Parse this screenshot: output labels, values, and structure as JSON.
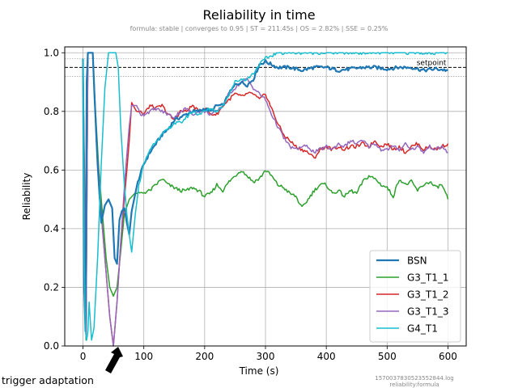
{
  "chart_data": {
    "type": "line",
    "title": "Reliability in time",
    "subtitle": "formula: stable | converges to 0.95 | ST = 211.45s | OS = 2.82% | SSE = 0.25%",
    "xlabel": "Time (s)",
    "ylabel": "Reliability",
    "xlim": [
      -30,
      630
    ],
    "ylim": [
      0.0,
      1.02
    ],
    "xticks": [
      0,
      100,
      200,
      300,
      400,
      500,
      600
    ],
    "yticks": [
      0.0,
      0.2,
      0.4,
      0.6,
      0.8,
      1.0
    ],
    "grid": true,
    "legend_position": "lower-right",
    "setpoint": {
      "label": "setpoint",
      "value": 0.95,
      "band_upper": 0.98,
      "band_lower": 0.92
    },
    "footnote": [
      "1570037830523552844.log",
      "reliability:formula"
    ],
    "annotation": {
      "text": "trigger adaptation",
      "x": 55,
      "y": 0.0
    },
    "series": [
      {
        "name": "BSN",
        "color": "#1f77b4",
        "lw": 2.2,
        "points": [
          [
            0,
            0.98
          ],
          [
            2,
            0.2
          ],
          [
            4,
            0.05
          ],
          [
            6,
            0.9
          ],
          [
            8,
            1.0
          ],
          [
            12,
            1.0
          ],
          [
            16,
            1.0
          ],
          [
            19,
            0.85
          ],
          [
            24,
            0.62
          ],
          [
            30,
            0.42
          ],
          [
            36,
            0.48
          ],
          [
            42,
            0.5
          ],
          [
            48,
            0.47
          ],
          [
            52,
            0.3
          ],
          [
            56,
            0.28
          ],
          [
            60,
            0.43
          ],
          [
            64,
            0.46
          ],
          [
            68,
            0.47
          ],
          [
            72,
            0.42
          ],
          [
            76,
            0.38
          ],
          [
            80,
            0.46
          ],
          [
            90,
            0.56
          ],
          [
            100,
            0.62
          ],
          [
            110,
            0.66
          ],
          [
            120,
            0.69
          ],
          [
            130,
            0.72
          ],
          [
            140,
            0.74
          ],
          [
            150,
            0.77
          ],
          [
            160,
            0.78
          ],
          [
            170,
            0.79
          ],
          [
            180,
            0.8
          ],
          [
            190,
            0.8
          ],
          [
            200,
            0.81
          ],
          [
            210,
            0.8
          ],
          [
            220,
            0.82
          ],
          [
            230,
            0.82
          ],
          [
            240,
            0.86
          ],
          [
            250,
            0.89
          ],
          [
            260,
            0.9
          ],
          [
            270,
            0.89
          ],
          [
            280,
            0.91
          ],
          [
            290,
            0.96
          ],
          [
            300,
            0.97
          ],
          [
            310,
            0.96
          ],
          [
            320,
            0.95
          ],
          [
            340,
            0.95
          ],
          [
            360,
            0.94
          ],
          [
            380,
            0.95
          ],
          [
            400,
            0.95
          ],
          [
            420,
            0.94
          ],
          [
            440,
            0.945
          ],
          [
            460,
            0.95
          ],
          [
            480,
            0.95
          ],
          [
            500,
            0.945
          ],
          [
            520,
            0.95
          ],
          [
            540,
            0.95
          ],
          [
            560,
            0.94
          ],
          [
            580,
            0.945
          ],
          [
            600,
            0.94
          ]
        ]
      },
      {
        "name": "G3_T1_1",
        "color": "#2ca02c",
        "lw": 1.5,
        "points": [
          [
            0,
            0.98
          ],
          [
            3,
            0.5
          ],
          [
            5,
            0.02
          ],
          [
            8,
            1.0
          ],
          [
            12,
            1.0
          ],
          [
            16,
            1.0
          ],
          [
            20,
            0.82
          ],
          [
            26,
            0.6
          ],
          [
            32,
            0.45
          ],
          [
            38,
            0.3
          ],
          [
            44,
            0.2
          ],
          [
            50,
            0.17
          ],
          [
            56,
            0.2
          ],
          [
            62,
            0.32
          ],
          [
            68,
            0.45
          ],
          [
            76,
            0.5
          ],
          [
            85,
            0.52
          ],
          [
            95,
            0.52
          ],
          [
            110,
            0.53
          ],
          [
            120,
            0.55
          ],
          [
            130,
            0.57
          ],
          [
            140,
            0.55
          ],
          [
            150,
            0.54
          ],
          [
            160,
            0.53
          ],
          [
            170,
            0.53
          ],
          [
            180,
            0.54
          ],
          [
            190,
            0.53
          ],
          [
            200,
            0.51
          ],
          [
            210,
            0.52
          ],
          [
            220,
            0.55
          ],
          [
            230,
            0.53
          ],
          [
            240,
            0.56
          ],
          [
            250,
            0.58
          ],
          [
            260,
            0.6
          ],
          [
            270,
            0.58
          ],
          [
            280,
            0.56
          ],
          [
            290,
            0.57
          ],
          [
            300,
            0.6
          ],
          [
            310,
            0.58
          ],
          [
            320,
            0.55
          ],
          [
            330,
            0.54
          ],
          [
            340,
            0.52
          ],
          [
            350,
            0.51
          ],
          [
            360,
            0.47
          ],
          [
            370,
            0.5
          ],
          [
            380,
            0.53
          ],
          [
            390,
            0.55
          ],
          [
            400,
            0.55
          ],
          [
            410,
            0.52
          ],
          [
            420,
            0.53
          ],
          [
            430,
            0.51
          ],
          [
            440,
            0.53
          ],
          [
            450,
            0.52
          ],
          [
            460,
            0.56
          ],
          [
            470,
            0.58
          ],
          [
            480,
            0.57
          ],
          [
            490,
            0.55
          ],
          [
            500,
            0.54
          ],
          [
            510,
            0.51
          ],
          [
            520,
            0.57
          ],
          [
            530,
            0.55
          ],
          [
            540,
            0.56
          ],
          [
            550,
            0.53
          ],
          [
            560,
            0.55
          ],
          [
            570,
            0.56
          ],
          [
            580,
            0.54
          ],
          [
            590,
            0.55
          ],
          [
            600,
            0.5
          ]
        ]
      },
      {
        "name": "G3_T1_2",
        "color": "#d62728",
        "lw": 1.5,
        "points": [
          [
            0,
            0.98
          ],
          [
            3,
            0.4
          ],
          [
            5,
            0.03
          ],
          [
            8,
            1.0
          ],
          [
            12,
            1.0
          ],
          [
            16,
            1.0
          ],
          [
            22,
            0.7
          ],
          [
            30,
            0.45
          ],
          [
            38,
            0.25
          ],
          [
            44,
            0.1
          ],
          [
            50,
            0.0
          ],
          [
            56,
            0.15
          ],
          [
            62,
            0.35
          ],
          [
            70,
            0.55
          ],
          [
            76,
            0.7
          ],
          [
            80,
            0.83
          ],
          [
            88,
            0.8
          ],
          [
            95,
            0.8
          ],
          [
            100,
            0.79
          ],
          [
            110,
            0.82
          ],
          [
            120,
            0.81
          ],
          [
            130,
            0.82
          ],
          [
            140,
            0.79
          ],
          [
            150,
            0.77
          ],
          [
            160,
            0.8
          ],
          [
            170,
            0.8
          ],
          [
            180,
            0.82
          ],
          [
            190,
            0.8
          ],
          [
            200,
            0.81
          ],
          [
            210,
            0.79
          ],
          [
            220,
            0.79
          ],
          [
            230,
            0.82
          ],
          [
            240,
            0.84
          ],
          [
            250,
            0.86
          ],
          [
            260,
            0.85
          ],
          [
            270,
            0.86
          ],
          [
            280,
            0.86
          ],
          [
            290,
            0.84
          ],
          [
            300,
            0.86
          ],
          [
            310,
            0.81
          ],
          [
            320,
            0.76
          ],
          [
            330,
            0.72
          ],
          [
            340,
            0.7
          ],
          [
            350,
            0.68
          ],
          [
            360,
            0.67
          ],
          [
            370,
            0.66
          ],
          [
            380,
            0.64
          ],
          [
            390,
            0.67
          ],
          [
            400,
            0.68
          ],
          [
            410,
            0.67
          ],
          [
            420,
            0.68
          ],
          [
            430,
            0.67
          ],
          [
            440,
            0.68
          ],
          [
            450,
            0.68
          ],
          [
            460,
            0.69
          ],
          [
            470,
            0.68
          ],
          [
            480,
            0.7
          ],
          [
            490,
            0.68
          ],
          [
            500,
            0.69
          ],
          [
            510,
            0.67
          ],
          [
            520,
            0.68
          ],
          [
            530,
            0.66
          ],
          [
            540,
            0.68
          ],
          [
            550,
            0.69
          ],
          [
            560,
            0.67
          ],
          [
            570,
            0.68
          ],
          [
            580,
            0.67
          ],
          [
            590,
            0.68
          ],
          [
            600,
            0.69
          ]
        ]
      },
      {
        "name": "G3_T1_3",
        "color": "#9467bd",
        "lw": 1.5,
        "points": [
          [
            0,
            0.98
          ],
          [
            3,
            0.4
          ],
          [
            5,
            0.03
          ],
          [
            8,
            1.0
          ],
          [
            12,
            1.0
          ],
          [
            16,
            1.0
          ],
          [
            22,
            0.7
          ],
          [
            30,
            0.45
          ],
          [
            38,
            0.25
          ],
          [
            44,
            0.1
          ],
          [
            50,
            0.0
          ],
          [
            56,
            0.15
          ],
          [
            62,
            0.35
          ],
          [
            70,
            0.6
          ],
          [
            76,
            0.75
          ],
          [
            80,
            0.82
          ],
          [
            88,
            0.82
          ],
          [
            95,
            0.79
          ],
          [
            100,
            0.79
          ],
          [
            110,
            0.8
          ],
          [
            120,
            0.81
          ],
          [
            130,
            0.8
          ],
          [
            140,
            0.79
          ],
          [
            150,
            0.78
          ],
          [
            160,
            0.8
          ],
          [
            170,
            0.81
          ],
          [
            180,
            0.79
          ],
          [
            190,
            0.8
          ],
          [
            200,
            0.8
          ],
          [
            210,
            0.79
          ],
          [
            220,
            0.8
          ],
          [
            230,
            0.82
          ],
          [
            240,
            0.86
          ],
          [
            250,
            0.88
          ],
          [
            260,
            0.9
          ],
          [
            270,
            0.91
          ],
          [
            280,
            0.88
          ],
          [
            290,
            0.86
          ],
          [
            300,
            0.84
          ],
          [
            310,
            0.79
          ],
          [
            320,
            0.75
          ],
          [
            330,
            0.71
          ],
          [
            340,
            0.68
          ],
          [
            350,
            0.67
          ],
          [
            360,
            0.68
          ],
          [
            370,
            0.68
          ],
          [
            380,
            0.66
          ],
          [
            390,
            0.67
          ],
          [
            400,
            0.68
          ],
          [
            410,
            0.67
          ],
          [
            420,
            0.69
          ],
          [
            430,
            0.68
          ],
          [
            440,
            0.7
          ],
          [
            450,
            0.69
          ],
          [
            460,
            0.7
          ],
          [
            470,
            0.68
          ],
          [
            480,
            0.69
          ],
          [
            490,
            0.67
          ],
          [
            500,
            0.67
          ],
          [
            510,
            0.68
          ],
          [
            520,
            0.67
          ],
          [
            530,
            0.69
          ],
          [
            540,
            0.67
          ],
          [
            550,
            0.68
          ],
          [
            560,
            0.66
          ],
          [
            570,
            0.68
          ],
          [
            580,
            0.67
          ],
          [
            590,
            0.68
          ],
          [
            600,
            0.66
          ]
        ]
      },
      {
        "name": "G4_T1",
        "color": "#17becf",
        "lw": 1.5,
        "points": [
          [
            0,
            0.98
          ],
          [
            2,
            0.3
          ],
          [
            4,
            0.05
          ],
          [
            6,
            0.02
          ],
          [
            8,
            0.05
          ],
          [
            10,
            0.15
          ],
          [
            14,
            0.02
          ],
          [
            18,
            0.06
          ],
          [
            24,
            0.3
          ],
          [
            30,
            0.62
          ],
          [
            36,
            0.88
          ],
          [
            42,
            1.0
          ],
          [
            48,
            1.0
          ],
          [
            54,
            1.0
          ],
          [
            58,
            0.95
          ],
          [
            62,
            0.75
          ],
          [
            68,
            0.55
          ],
          [
            72,
            0.45
          ],
          [
            76,
            0.38
          ],
          [
            80,
            0.32
          ],
          [
            86,
            0.45
          ],
          [
            92,
            0.55
          ],
          [
            100,
            0.62
          ],
          [
            110,
            0.67
          ],
          [
            120,
            0.7
          ],
          [
            130,
            0.72
          ],
          [
            140,
            0.74
          ],
          [
            150,
            0.76
          ],
          [
            160,
            0.76
          ],
          [
            170,
            0.78
          ],
          [
            180,
            0.8
          ],
          [
            190,
            0.79
          ],
          [
            200,
            0.8
          ],
          [
            210,
            0.81
          ],
          [
            220,
            0.8
          ],
          [
            230,
            0.82
          ],
          [
            240,
            0.86
          ],
          [
            250,
            0.9
          ],
          [
            260,
            0.91
          ],
          [
            270,
            0.91
          ],
          [
            280,
            0.93
          ],
          [
            290,
            0.96
          ],
          [
            300,
            0.98
          ],
          [
            310,
            0.99
          ],
          [
            320,
            1.0
          ],
          [
            340,
            1.0
          ],
          [
            400,
            1.0
          ],
          [
            500,
            1.0
          ],
          [
            600,
            1.0
          ]
        ]
      }
    ]
  }
}
